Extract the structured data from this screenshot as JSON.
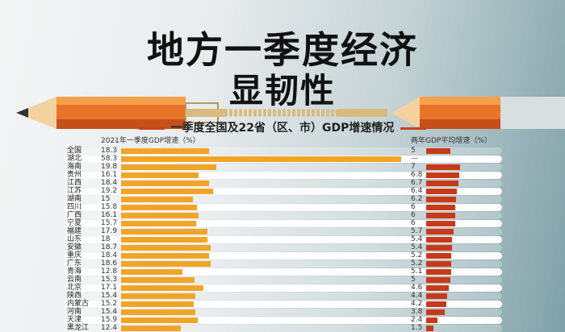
{
  "title_line1": "地方一季度经济",
  "title_line2": "显韧性",
  "subtitle": "一季度全国及22省（区、市）GDP增速情况",
  "colors": {
    "left_bar": "#f0a528",
    "right_bar": "#c8391a",
    "accent": "#c8431b"
  },
  "chart_data": {
    "type": "bar",
    "title": "一季度全国及22省（区、市）GDP增速情况",
    "categories": [
      "全国",
      "湖北",
      "海南",
      "贵州",
      "江西",
      "江苏",
      "湖南",
      "四川",
      "广西",
      "宁夏",
      "福建",
      "山东",
      "安徽",
      "重庆",
      "广东",
      "青海",
      "云南",
      "北京",
      "陕西",
      "内蒙古",
      "河南",
      "天津",
      "黑龙江"
    ],
    "series": [
      {
        "name": "2021年一季度GDP增速（%）",
        "values": [
          18.3,
          58.3,
          19.8,
          16.1,
          18.4,
          19.2,
          15,
          15.8,
          16.1,
          15.7,
          17.9,
          18,
          18.7,
          18.4,
          18.6,
          12.8,
          15.3,
          17.1,
          15.4,
          15.2,
          15.4,
          15.9,
          12.4
        ],
        "labels": [
          "18.3",
          "58.3",
          "19.8",
          "16.1",
          "18.4",
          "19.2",
          "15",
          "15.8",
          "16.1",
          "15.7",
          "17.9",
          "18",
          "18.7",
          "18.4",
          "18.6",
          "12.8",
          "15.3",
          "17.1",
          "15.4",
          "15.2",
          "15.4",
          "15.9",
          "12.4"
        ]
      },
      {
        "name": "两年GDP平均增速（%）",
        "values": [
          5,
          null,
          7,
          6.8,
          6.7,
          6.4,
          6.2,
          6,
          6,
          6,
          5.7,
          5.4,
          5.4,
          5.2,
          5.2,
          5.1,
          5,
          4.6,
          4.4,
          4.2,
          3.8,
          2.4,
          1.5
        ],
        "labels": [
          "5",
          "—",
          "7",
          "6.8",
          "6.7",
          "6.4",
          "6.2",
          "6",
          "6",
          "6",
          "5.7",
          "5.4",
          "5.4",
          "5.2",
          "5.2",
          "5.1",
          "5",
          "4.6",
          "4.4",
          "4.2",
          "3.8",
          "2.4",
          "1.5"
        ]
      }
    ],
    "orientation": "horizontal"
  }
}
